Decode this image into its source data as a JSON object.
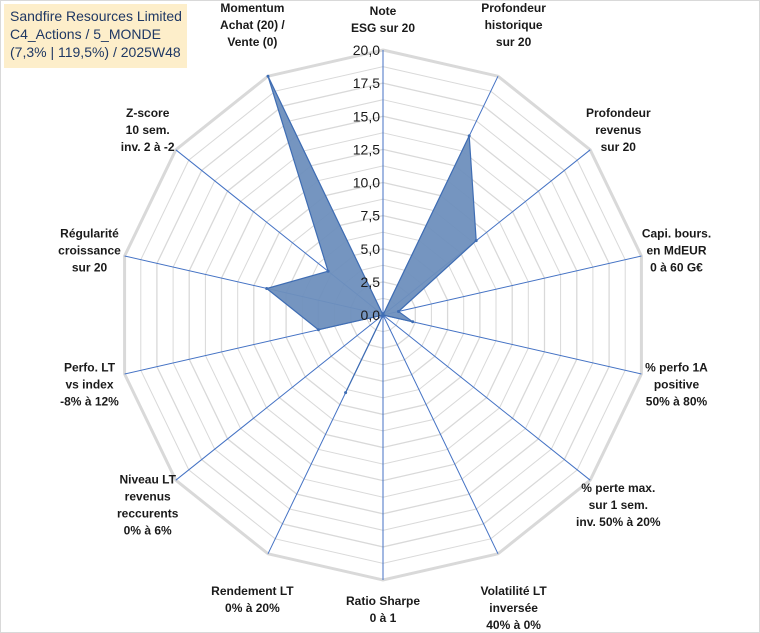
{
  "title_box": {
    "line1": "Sandfire Resources Limited",
    "line2": "C4_Actions / 5_MONDE",
    "line3": "(7,3% | 119,5%) / 2025W48"
  },
  "colors": {
    "grid": "#d9d9d9",
    "spoke": "#4472c4",
    "fill": "#6e8fbd",
    "stroke": "#3f6db3"
  },
  "chart_data": {
    "type": "radar",
    "title": "Sandfire Resources Limited C4_Actions / 5_MONDE (7,3% | 119,5%) / 2025W48",
    "rmin": 0,
    "rmax": 20,
    "tick_step": 2.5,
    "tick_labels": [
      "0,0",
      "2,5",
      "5,0",
      "7,5",
      "10,0",
      "12,5",
      "15,0",
      "17,5",
      "20,0"
    ],
    "axes": [
      [
        "Note",
        "ESG sur 20"
      ],
      [
        "Profondeur",
        "historique",
        "sur 20"
      ],
      [
        "Profondeur",
        "revenus",
        "sur 20"
      ],
      [
        "Capi. bours.",
        "en MdEUR",
        "0 à 60 G€"
      ],
      [
        "% perfo 1A",
        "positive",
        "50% à 80%"
      ],
      [
        "% perte max.",
        "sur 1 sem.",
        "inv. 50% à 20%"
      ],
      [
        "Volatilité LT",
        "inversée",
        "40% à 0%"
      ],
      [
        "Ratio Sharpe",
        "0 à 1"
      ],
      [
        "Rendement LT",
        "0% à 20%"
      ],
      [
        "Niveau LT",
        "revenus",
        "reccurents",
        "0% à 6%"
      ],
      [
        "Perfo. LT",
        "vs index",
        "-8% à 12%"
      ],
      [
        "Régularité",
        "croissance",
        "sur 20"
      ],
      [
        "Z-score",
        "10 sem.",
        "inv. 2 à -2"
      ],
      [
        "Momentum",
        "Achat (20) /",
        "Vente (0)"
      ]
    ],
    "series": [
      {
        "name": "Sandfire Resources Limited",
        "values": [
          0.0,
          15.0,
          9.0,
          1.2,
          2.3,
          0.0,
          0.0,
          0.0,
          6.5,
          0.0,
          5.0,
          9.0,
          5.3,
          20.0
        ]
      }
    ]
  }
}
